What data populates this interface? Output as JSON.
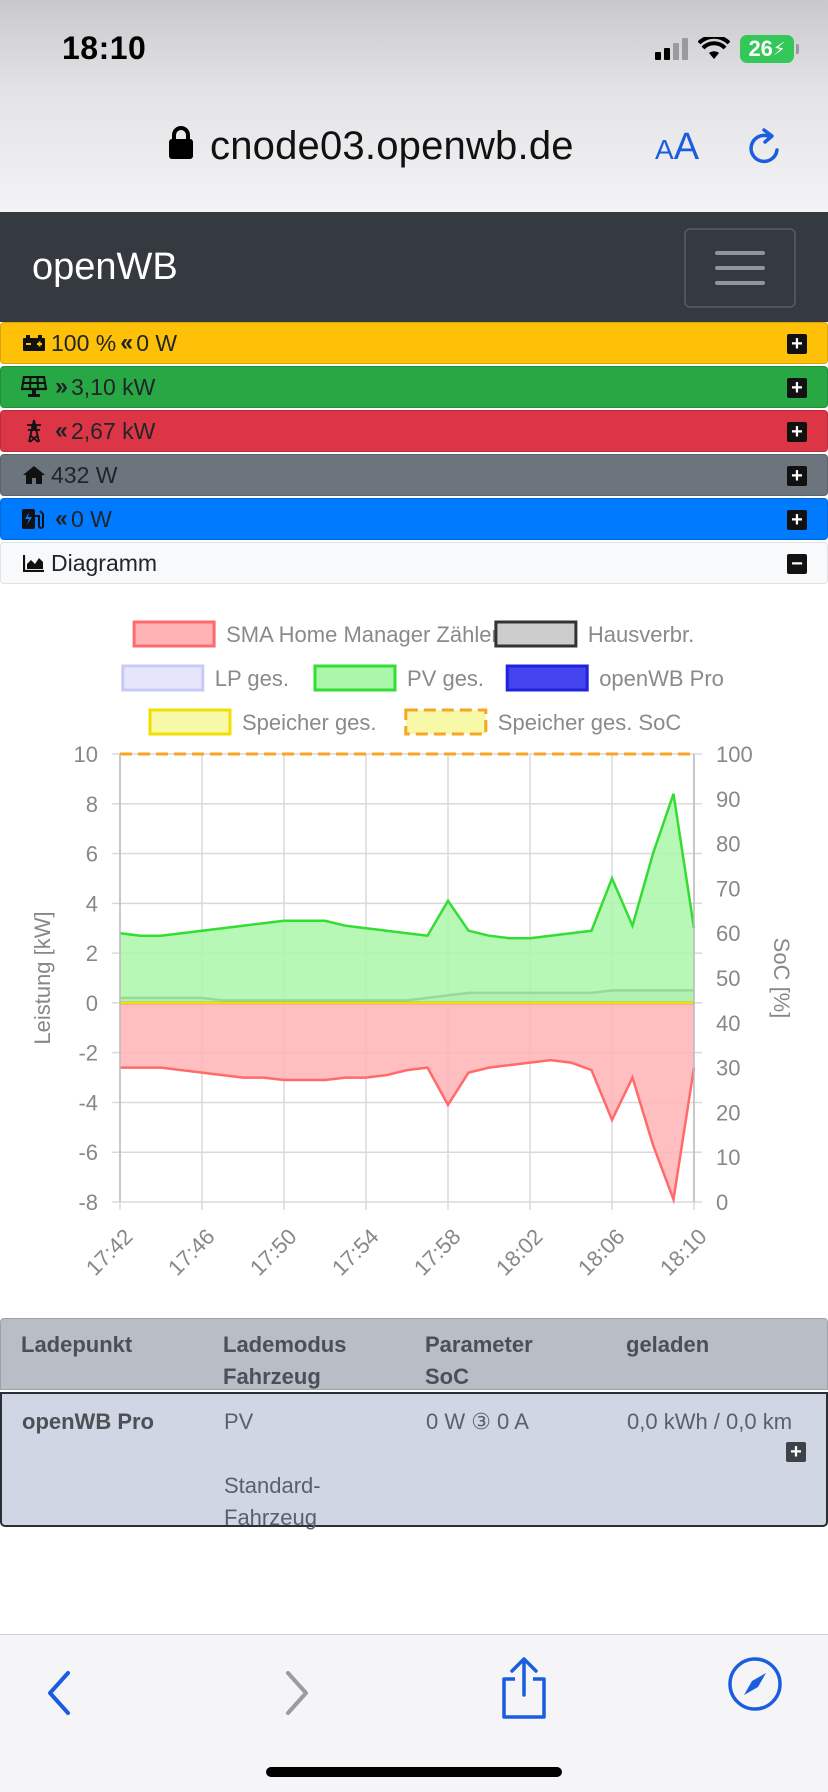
{
  "status_bar": {
    "time": "18:10",
    "battery": "26"
  },
  "browser": {
    "url": "cnode03.openwb.de",
    "aa_label_small": "A",
    "aa_label_big": "A"
  },
  "navbar": {
    "brand": "openWB"
  },
  "status_rows": {
    "battery": {
      "soc": "100 %",
      "power": "0 W",
      "color": "#ffc107"
    },
    "pv": {
      "power": "3,10 kW",
      "color": "#28a745"
    },
    "grid": {
      "power": "2,67 kW",
      "color": "#dc3545"
    },
    "house": {
      "power": "432 W",
      "color": "#6c757d"
    },
    "charge": {
      "power": "0 W",
      "color": "#007bff"
    },
    "diagram": {
      "label": "Diagramm"
    }
  },
  "chart_data": {
    "type": "area",
    "x": [
      "17:42",
      "17:43",
      "17:44",
      "17:45",
      "17:46",
      "17:47",
      "17:48",
      "17:49",
      "17:50",
      "17:51",
      "17:52",
      "17:53",
      "17:54",
      "17:55",
      "17:56",
      "17:57",
      "17:58",
      "17:59",
      "18:00",
      "18:01",
      "18:02",
      "18:03",
      "18:04",
      "18:05",
      "18:06",
      "18:07",
      "18:08",
      "18:09",
      "18:10"
    ],
    "x_ticks": [
      "17:42",
      "17:46",
      "17:50",
      "17:54",
      "17:58",
      "18:02",
      "18:06",
      "18:10"
    ],
    "ylabel": "Leistung [kW]",
    "ylabel_right": "SoC [%]",
    "ylim": [
      -8,
      10
    ],
    "y_ticks": [
      10,
      8,
      6,
      4,
      2,
      0,
      -2,
      -4,
      -6,
      -8
    ],
    "ylim_right": [
      0,
      100
    ],
    "y_ticks_right": [
      100,
      90,
      80,
      70,
      60,
      50,
      40,
      30,
      20,
      10,
      0
    ],
    "grid": true,
    "legend_position": "top",
    "series": [
      {
        "name": "SMA Home Manager Zähler",
        "color": "#ff6b6b",
        "fill": "#ffb3b5",
        "values": [
          -2.6,
          -2.6,
          -2.6,
          -2.7,
          -2.8,
          -2.9,
          -3.0,
          -3.0,
          -3.1,
          -3.1,
          -3.1,
          -3.0,
          -3.0,
          -2.9,
          -2.7,
          -2.6,
          -4.1,
          -2.8,
          -2.6,
          -2.5,
          -2.4,
          -2.3,
          -2.4,
          -2.7,
          -4.7,
          -3.0,
          -5.7,
          -7.9,
          -2.6
        ]
      },
      {
        "name": "Hausverbr.",
        "color": "#333333",
        "fill": "#cccccc",
        "values": [
          0.2,
          0.2,
          0.2,
          0.2,
          0.2,
          0.1,
          0.1,
          0.1,
          0.1,
          0.1,
          0.1,
          0.1,
          0.1,
          0.1,
          0.1,
          0.2,
          0.3,
          0.4,
          0.4,
          0.4,
          0.4,
          0.4,
          0.4,
          0.4,
          0.5,
          0.5,
          0.5,
          0.5,
          0.5
        ]
      },
      {
        "name": "LP ges.",
        "color": "#c9c9f5",
        "fill": "#e6e6fb",
        "values": [
          0,
          0,
          0,
          0,
          0,
          0,
          0,
          0,
          0,
          0,
          0,
          0,
          0,
          0,
          0,
          0,
          0,
          0,
          0,
          0,
          0,
          0,
          0,
          0,
          0,
          0,
          0,
          0,
          0
        ]
      },
      {
        "name": "PV ges.",
        "color": "#33dd33",
        "fill": "#aaf7aa",
        "values": [
          2.8,
          2.7,
          2.7,
          2.8,
          2.9,
          3.0,
          3.1,
          3.2,
          3.3,
          3.3,
          3.3,
          3.1,
          3.0,
          2.9,
          2.8,
          2.7,
          4.1,
          2.9,
          2.7,
          2.6,
          2.6,
          2.7,
          2.8,
          2.9,
          5.0,
          3.1,
          6.0,
          8.4,
          3.0
        ]
      },
      {
        "name": "openWB Pro",
        "color": "#2222dd",
        "fill": "#4444ee",
        "values": [
          0,
          0,
          0,
          0,
          0,
          0,
          0,
          0,
          0,
          0,
          0,
          0,
          0,
          0,
          0,
          0,
          0,
          0,
          0,
          0,
          0,
          0,
          0,
          0,
          0,
          0,
          0,
          0,
          0
        ]
      },
      {
        "name": "Speicher ges.",
        "color": "#f0e000",
        "fill": "#f7f9a8",
        "values": [
          0,
          0,
          0,
          0,
          0,
          0,
          0,
          0,
          0,
          0,
          0,
          0,
          0,
          0,
          0,
          0,
          0,
          0,
          0,
          0,
          0,
          0,
          0,
          0,
          0,
          0,
          0,
          0,
          0
        ]
      },
      {
        "name": "Speicher ges. SoC",
        "color": "#f5a623",
        "fill": "#f7f9a8",
        "axis": "right",
        "dashed": true,
        "values": [
          100,
          100,
          100,
          100,
          100,
          100,
          100,
          100,
          100,
          100,
          100,
          100,
          100,
          100,
          100,
          100,
          100,
          100,
          100,
          100,
          100,
          100,
          100,
          100,
          100,
          100,
          100,
          100,
          100
        ]
      }
    ]
  },
  "table": {
    "headers": {
      "c1": "Ladepunkt",
      "c2a": "Lademodus",
      "c2b": "Fahrzeug",
      "c3a": "Parameter",
      "c3b": "SoC",
      "c4": "geladen"
    },
    "row": {
      "name": "openWB Pro",
      "mode": "PV",
      "vehicle_a": "Standard-",
      "vehicle_b": "Fahrzeug",
      "params": "0 W ③ 0 A",
      "charged": "0,0 kWh / 0,0 km"
    }
  }
}
